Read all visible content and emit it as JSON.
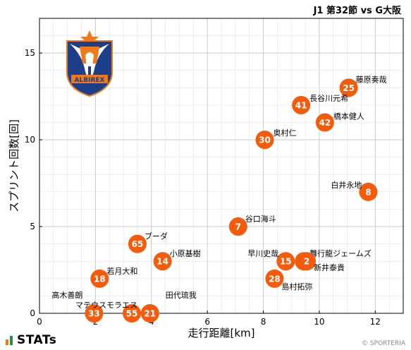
{
  "header": {
    "title": "J1 第32節 vs G大阪"
  },
  "footer": {
    "stats_logo": "STATs",
    "credit": "© SPORTERIA"
  },
  "colors": {
    "marker": "#f45b0c",
    "grid": "#c9c9c9",
    "stats_green": "#2e8b3e",
    "stats_orange": "#f07a1a"
  },
  "chart_data": {
    "type": "scatter",
    "xlabel": "走行距離[km]",
    "ylabel": "スプリント回数[回]",
    "xlim": [
      0,
      13
    ],
    "ylim": [
      0,
      17
    ],
    "xticks": [
      0,
      2,
      4,
      6,
      8,
      10,
      12
    ],
    "yticks": [
      0,
      5,
      10,
      15
    ],
    "grid": true,
    "points": [
      {
        "number": "25",
        "name": "藤原奏哉",
        "x": 11.05,
        "y": 13
      },
      {
        "number": "41",
        "name": "長谷川元希",
        "x": 9.35,
        "y": 12
      },
      {
        "number": "42",
        "name": "橋本健人",
        "x": 10.2,
        "y": 11
      },
      {
        "number": "30",
        "name": "奥村仁",
        "x": 8.05,
        "y": 10
      },
      {
        "number": "8",
        "name": "白井永地",
        "x": 11.75,
        "y": 7
      },
      {
        "number": "7",
        "name": "谷口海斗",
        "x": 7.1,
        "y": 5
      },
      {
        "number": "65",
        "name": "ブーダ",
        "x": 3.5,
        "y": 4
      },
      {
        "number": "14",
        "name": "小原基樹",
        "x": 4.4,
        "y": 3
      },
      {
        "number": "15",
        "name": "早川史哉",
        "x": 8.8,
        "y": 3
      },
      {
        "number": "5",
        "name": "舞行龍ジェームズ",
        "x": 9.45,
        "y": 3
      },
      {
        "number": "2",
        "name": "新井泰貴",
        "x": 9.55,
        "y": 3
      },
      {
        "number": "28",
        "name": "島村拓弥",
        "x": 8.4,
        "y": 2
      },
      {
        "number": "18",
        "name": "若月大和",
        "x": 2.15,
        "y": 2
      },
      {
        "number": "33",
        "name": "高木善朗",
        "x": 1.95,
        "y": 0
      },
      {
        "number": "55",
        "name": "マテウスモラエス",
        "x": 3.3,
        "y": 0
      },
      {
        "number": "21",
        "name": "田代琉我",
        "x": 3.95,
        "y": 0
      }
    ]
  }
}
